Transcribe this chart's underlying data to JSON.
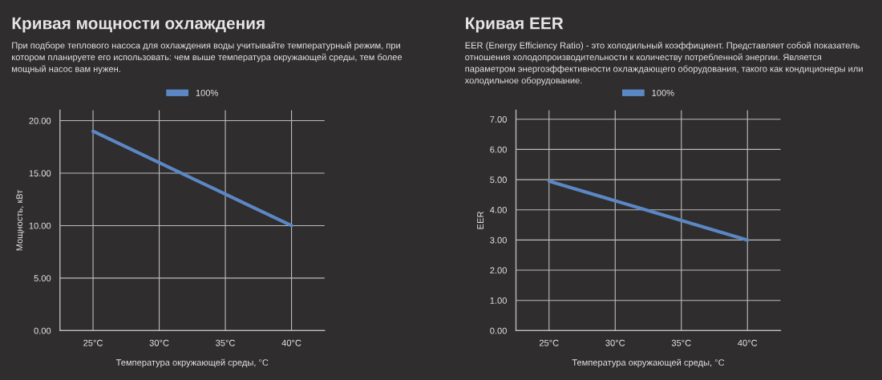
{
  "chart_data": [
    {
      "type": "line",
      "title": "Кривая мощности охлаждения",
      "subtitle": "При подборе теплового насоса для охлаждения воды учитывайте температурный режим, при котором планируете его использовать: чем выше температура окружающей среды, тем более мощный насос вам нужен.",
      "xlabel": "Температура окружающей среды, °C",
      "ylabel": "Мощность, кВт",
      "categories": [
        "25°C",
        "30°C",
        "35°C",
        "40°C"
      ],
      "series": [
        {
          "name": "100%",
          "color": "#5b87c4",
          "values": [
            19,
            16,
            13,
            10
          ]
        }
      ],
      "ylim": [
        0,
        21
      ],
      "yticks": [
        {
          "value": 0,
          "label": "0.00"
        },
        {
          "value": 5,
          "label": "5.00"
        },
        {
          "value": 10,
          "label": "10.00"
        },
        {
          "value": 15,
          "label": "15.00"
        },
        {
          "value": 20,
          "label": "20.00"
        }
      ],
      "grid": true,
      "legend": "top",
      "line_style": "solid"
    },
    {
      "type": "line",
      "title": "Кривая EER",
      "subtitle": "EER (Energy Efficiency Ratio) - это холодильный коэффициент. Представляет собой показатель отношения холодопроизводительности к количеству потребленной энергии. Является параметром энергоэффективности охлаждающего оборудования, такого как кондиционеры или холодильное оборудование.",
      "xlabel": "Температура окружающей среды, °C",
      "ylabel": "EER",
      "categories": [
        "25°C",
        "30°C",
        "35°C",
        "40°C"
      ],
      "series": [
        {
          "name": "100%",
          "color": "#5b87c4",
          "values": [
            4.95,
            4.3,
            3.65,
            3.0
          ]
        }
      ],
      "ylim": [
        0,
        7.3
      ],
      "yticks": [
        {
          "value": 0,
          "label": "0.00"
        },
        {
          "value": 1,
          "label": "1.00"
        },
        {
          "value": 2,
          "label": "2.00"
        },
        {
          "value": 3,
          "label": "3.00"
        },
        {
          "value": 4,
          "label": "4.00"
        },
        {
          "value": 5,
          "label": "5.00"
        },
        {
          "value": 6,
          "label": "6.00"
        },
        {
          "value": 7,
          "label": "7.00"
        }
      ],
      "grid": true,
      "legend": "top",
      "line_style": "solid"
    }
  ]
}
